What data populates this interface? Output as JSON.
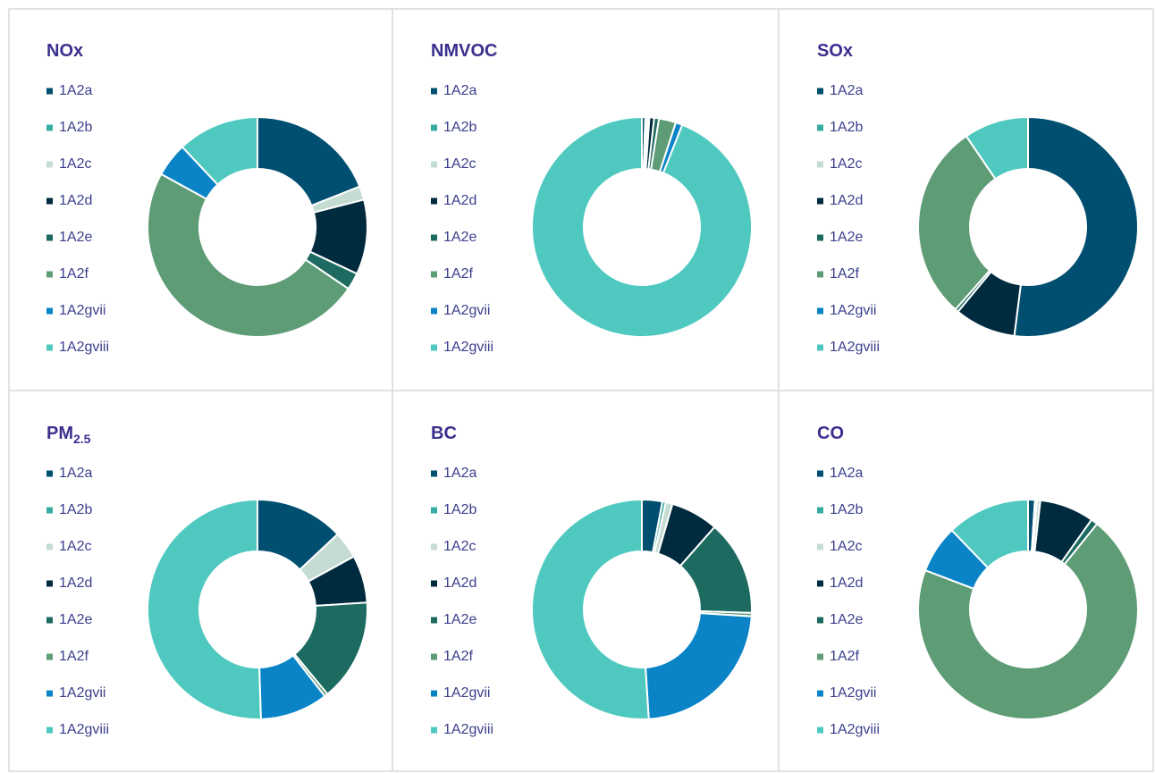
{
  "chart_data": [
    {
      "type": "donut",
      "title": "NOx",
      "categories": [
        "1A2a",
        "1A2b",
        "1A2c",
        "1A2d",
        "1A2e",
        "1A2f",
        "1A2gvii",
        "1A2gviii"
      ],
      "values": [
        19,
        0,
        2,
        11,
        2.5,
        48.5,
        5,
        12
      ],
      "colors": [
        "#004f71",
        "#36ada0",
        "#c5dcd2",
        "#002b3f",
        "#1c6a60",
        "#5e9c76",
        "#0a84c6",
        "#4fc9c0"
      ]
    },
    {
      "type": "donut",
      "title": "NMVOC",
      "categories": [
        "1A2a",
        "1A2b",
        "1A2c",
        "1A2d",
        "1A2e",
        "1A2f",
        "1A2gvii",
        "1A2gviii"
      ],
      "values": [
        0.5,
        0.3,
        0.3,
        0.7,
        0.7,
        2.5,
        1,
        94
      ],
      "colors": [
        "#004f71",
        "#36ada0",
        "#c5dcd2",
        "#002b3f",
        "#1c6a60",
        "#5e9c76",
        "#0a84c6",
        "#4fc9c0"
      ]
    },
    {
      "type": "donut",
      "title": "SOx",
      "categories": [
        "1A2a",
        "1A2b",
        "1A2c",
        "1A2d",
        "1A2e",
        "1A2f",
        "1A2gvii",
        "1A2gviii"
      ],
      "values": [
        52,
        0,
        0,
        9,
        0.5,
        29,
        0,
        9.5
      ],
      "colors": [
        "#004f71",
        "#36ada0",
        "#c5dcd2",
        "#002b3f",
        "#1c6a60",
        "#5e9c76",
        "#0a84c6",
        "#4fc9c0"
      ]
    },
    {
      "type": "donut",
      "title": "PM",
      "title_sub": "2.5",
      "categories": [
        "1A2a",
        "1A2b",
        "1A2c",
        "1A2d",
        "1A2e",
        "1A2f",
        "1A2gvii",
        "1A2gviii"
      ],
      "values": [
        13,
        0,
        4,
        7,
        15,
        0.5,
        10,
        50.5
      ],
      "colors": [
        "#004f71",
        "#36ada0",
        "#c5dcd2",
        "#002b3f",
        "#1c6a60",
        "#5e9c76",
        "#0a84c6",
        "#4fc9c0"
      ]
    },
    {
      "type": "donut",
      "title": "BC",
      "categories": [
        "1A2a",
        "1A2b",
        "1A2c",
        "1A2d",
        "1A2e",
        "1A2f",
        "1A2gvii",
        "1A2gviii"
      ],
      "values": [
        3,
        0.5,
        1,
        7,
        14,
        0.5,
        23,
        51
      ],
      "colors": [
        "#004f71",
        "#36ada0",
        "#c5dcd2",
        "#002b3f",
        "#1c6a60",
        "#5e9c76",
        "#0a84c6",
        "#4fc9c0"
      ]
    },
    {
      "type": "donut",
      "title": "CO",
      "categories": [
        "1A2a",
        "1A2b",
        "1A2c",
        "1A2d",
        "1A2e",
        "1A2f",
        "1A2gvii",
        "1A2gviii"
      ],
      "values": [
        1,
        0.3,
        0.5,
        8,
        1,
        70,
        7,
        12.2
      ],
      "colors": [
        "#004f71",
        "#36ada0",
        "#c5dcd2",
        "#002b3f",
        "#1c6a60",
        "#5e9c76",
        "#0a84c6",
        "#4fc9c0"
      ]
    }
  ]
}
